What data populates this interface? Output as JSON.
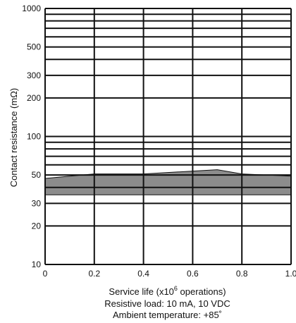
{
  "chart_data": {
    "type": "area",
    "ylabel": "Contact resistance (mΩ)",
    "xlabel_parts": {
      "before": "Service life (x10",
      "sup": "6",
      "after": " operations)"
    },
    "conditions": [
      "Resistive load: 10 mA, 10 VDC",
      "Ambient temperature: +85˚"
    ],
    "x_range": [
      0,
      1.0
    ],
    "y_range": [
      10,
      1000
    ],
    "y_scale": "log",
    "x_ticks": [
      0,
      0.2,
      0.4,
      0.6,
      0.8,
      1.0
    ],
    "x_tick_labels": [
      "0",
      "0.2",
      "0.4",
      "0.6",
      "0.8",
      "1.0"
    ],
    "y_ticks_labeled": [
      10,
      20,
      30,
      50,
      100,
      200,
      300,
      500,
      1000
    ],
    "y_tick_labels": [
      "10",
      "20",
      "30",
      "50",
      "100",
      "200",
      "300",
      "500",
      "1000"
    ],
    "y_grid": [
      10,
      20,
      30,
      40,
      50,
      60,
      70,
      80,
      90,
      100,
      200,
      300,
      400,
      500,
      600,
      700,
      800,
      900,
      1000
    ],
    "band_upper": [
      {
        "x": 0,
        "y": 47
      },
      {
        "x": 0.2,
        "y": 51
      },
      {
        "x": 0.4,
        "y": 51
      },
      {
        "x": 0.7,
        "y": 55
      },
      {
        "x": 0.8,
        "y": 51
      },
      {
        "x": 1.0,
        "y": 49
      }
    ],
    "band_lower": [
      {
        "x": 0,
        "y": 35
      },
      {
        "x": 1.0,
        "y": 35
      }
    ],
    "band_color": "#8c8c8c",
    "grid": true
  }
}
